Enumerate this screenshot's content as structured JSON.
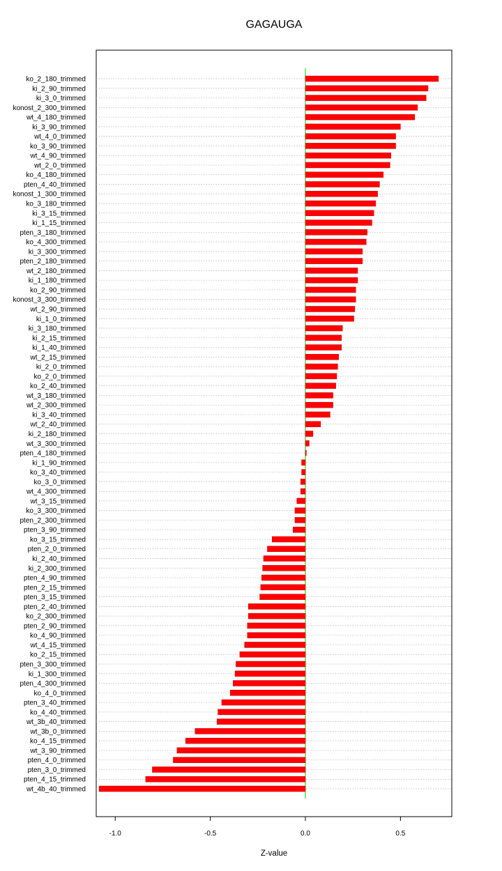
{
  "chart_data": {
    "type": "bar",
    "orientation": "horizontal",
    "title": "GAGAUGA",
    "xlabel": "Z-value",
    "ylabel": "",
    "xlim": [
      -1.1,
      0.77
    ],
    "xticks": [
      -1.0,
      -0.5,
      0.0,
      0.5
    ],
    "xtick_labels": [
      "-1.0",
      "-0.5",
      "0.0",
      "0.5"
    ],
    "grid": "horizontal dotted lines per category",
    "bar_color": "#ff0000",
    "zero_line_color": "#00cc00",
    "categories": [
      "ko_2_180_trimmed",
      "ki_2_90_trimmed",
      "ki_3_0_trimmed",
      "konost_2_300_trimmed",
      "wt_4_180_trimmed",
      "ki_3_90_trimmed",
      "wt_4_0_trimmed",
      "ko_3_90_trimmed",
      "wt_4_90_trimmed",
      "wt_2_0_trimmed",
      "ko_4_180_trimmed",
      "pten_4_40_trimmed",
      "konost_1_300_trimmed",
      "ko_3_180_trimmed",
      "ki_3_15_trimmed",
      "ki_1_15_trimmed",
      "pten_3_180_trimmed",
      "ko_4_300_trimmed",
      "ki_3_300_trimmed",
      "pten_2_180_trimmed",
      "wt_2_180_trimmed",
      "ki_1_180_trimmed",
      "ko_2_90_trimmed",
      "konost_3_300_trimmed",
      "wt_2_90_trimmed",
      "ki_1_0_trimmed",
      "ki_3_180_trimmed",
      "ki_2_15_trimmed",
      "ki_1_40_trimmed",
      "wt_2_15_trimmed",
      "ki_2_0_trimmed",
      "ko_2_0_trimmed",
      "ko_2_40_trimmed",
      "wt_3_180_trimmed",
      "wt_2_300_trimmed",
      "ki_3_40_trimmed",
      "wt_2_40_trimmed",
      "ki_2_180_trimmed",
      "wt_3_300_trimmed",
      "pten_4_180_trimmed",
      "ki_1_90_trimmed",
      "ko_3_40_trimmed",
      "ko_3_0_trimmed",
      "wt_4_300_trimmed",
      "wt_3_15_trimmed",
      "ko_3_300_trimmed",
      "pten_2_300_trimmed",
      "pten_3_90_trimmed",
      "ko_3_15_trimmed",
      "pten_2_0_trimmed",
      "ki_2_40_trimmed",
      "ki_2_300_trimmed",
      "pten_4_90_trimmed",
      "pten_2_15_trimmed",
      "pten_3_15_trimmed",
      "pten_2_40_trimmed",
      "ko_2_300_trimmed",
      "pten_2_90_trimmed",
      "ko_4_90_trimmed",
      "wt_4_15_trimmed",
      "ko_2_15_trimmed",
      "pten_3_300_trimmed",
      "ki_1_300_trimmed",
      "pten_4_300_trimmed",
      "ko_4_0_trimmed",
      "pten_3_40_trimmed",
      "ko_4_40_trimmed",
      "wt_3b_40_trimmed",
      "wt_3b_0_trimmed",
      "ko_4_15_trimmed",
      "wt_3_90_trimmed",
      "pten_4_0_trimmed",
      "pten_3_0_trimmed",
      "pten_4_15_trimmed",
      "wt_4b_40_trimmed"
    ],
    "values": [
      0.7,
      0.645,
      0.635,
      0.59,
      0.575,
      0.5,
      0.475,
      0.475,
      0.45,
      0.445,
      0.41,
      0.39,
      0.38,
      0.37,
      0.36,
      0.35,
      0.325,
      0.32,
      0.3,
      0.3,
      0.275,
      0.275,
      0.265,
      0.265,
      0.26,
      0.255,
      0.195,
      0.19,
      0.19,
      0.175,
      0.17,
      0.165,
      0.16,
      0.145,
      0.145,
      0.13,
      0.08,
      0.04,
      0.02,
      0.005,
      -0.02,
      -0.02,
      -0.025,
      -0.025,
      -0.045,
      -0.055,
      -0.055,
      -0.065,
      -0.175,
      -0.2,
      -0.22,
      -0.225,
      -0.23,
      -0.235,
      -0.24,
      -0.3,
      -0.3,
      -0.305,
      -0.305,
      -0.32,
      -0.345,
      -0.365,
      -0.37,
      -0.38,
      -0.395,
      -0.44,
      -0.46,
      -0.465,
      -0.58,
      -0.63,
      -0.675,
      -0.695,
      -0.805,
      -0.84,
      -1.085
    ]
  }
}
